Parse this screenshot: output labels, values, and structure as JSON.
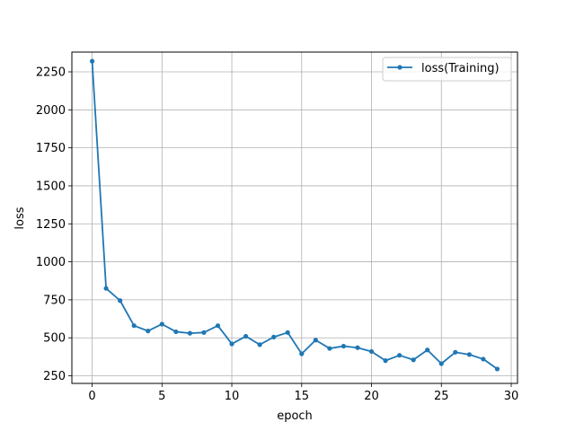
{
  "chart_data": {
    "type": "line",
    "title": "",
    "xlabel": "epoch",
    "ylabel": "loss",
    "xlim": [
      -1.45,
      30.45
    ],
    "ylim": [
      200,
      2380
    ],
    "xticks": [
      0,
      5,
      10,
      15,
      20,
      25,
      30
    ],
    "yticks": [
      250,
      500,
      750,
      1000,
      1250,
      1500,
      1750,
      2000,
      2250
    ],
    "grid": true,
    "legend_position": "top-right",
    "series": [
      {
        "name": "loss(Training)",
        "color": "#1f77b4",
        "marker": "circle",
        "x": [
          0,
          1,
          2,
          3,
          4,
          5,
          6,
          7,
          8,
          9,
          10,
          11,
          12,
          13,
          14,
          15,
          16,
          17,
          18,
          19,
          20,
          21,
          22,
          23,
          24,
          25,
          26,
          27,
          28,
          29
        ],
        "y": [
          2320,
          825,
          745,
          580,
          545,
          590,
          540,
          530,
          535,
          580,
          460,
          510,
          455,
          505,
          535,
          395,
          485,
          430,
          445,
          435,
          410,
          350,
          385,
          355,
          420,
          330,
          405,
          390,
          360,
          295
        ]
      }
    ]
  }
}
